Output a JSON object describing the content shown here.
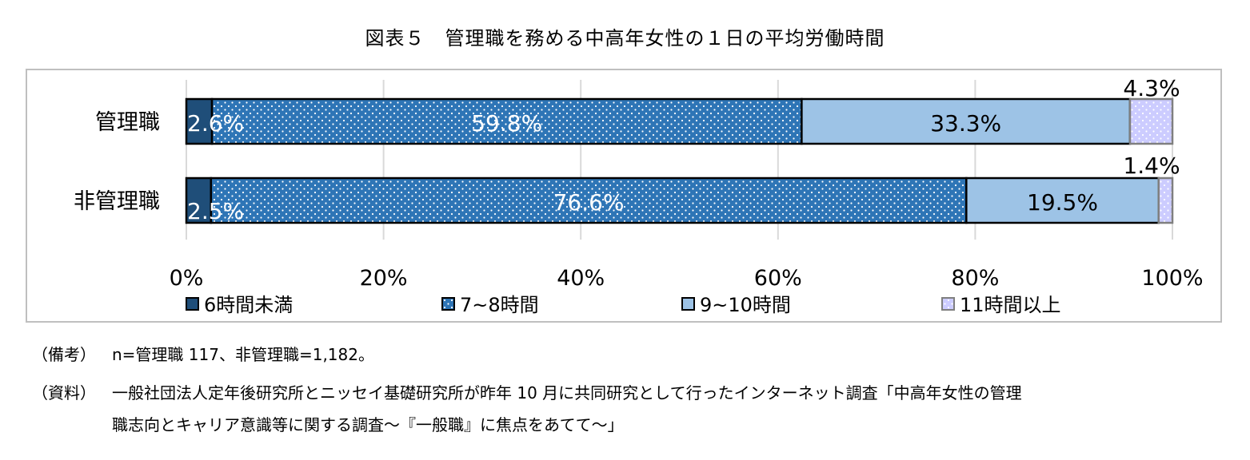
{
  "title": "図表５　管理職を務める中高年女性の１日の平均労働時間",
  "chart_data": {
    "type": "bar",
    "orientation": "horizontal",
    "stacked": "100%",
    "categories": [
      "管理職",
      "非管理職"
    ],
    "series": [
      {
        "name": "6時間未満",
        "values": [
          2.6,
          2.5
        ],
        "labels": [
          "2.6%",
          "2.5%"
        ],
        "color": "#1f4e79",
        "pattern": "solid"
      },
      {
        "name": "7~8時間",
        "values": [
          59.8,
          76.6
        ],
        "labels": [
          "59.8%",
          "76.6%"
        ],
        "color": "#2e75b6",
        "pattern": "dots"
      },
      {
        "name": "9~10時間",
        "values": [
          33.3,
          19.5
        ],
        "labels": [
          "33.3%",
          "19.5%"
        ],
        "color": "#9dc3e6",
        "pattern": "solid"
      },
      {
        "name": "11時間以上",
        "values": [
          4.3,
          1.4
        ],
        "labels": [
          "4.3%",
          "1.4%"
        ],
        "color": "#ccccff",
        "pattern": "dots"
      }
    ],
    "xlim": [
      0,
      100
    ],
    "xticks": [
      "0%",
      "20%",
      "40%",
      "60%",
      "80%",
      "100%"
    ],
    "grid": true,
    "legend_position": "bottom"
  },
  "notes": {
    "remarks_tag": "（備考）",
    "remarks_text": "n=管理職 117、非管理職=1,182。",
    "source_tag": "（資料）",
    "source_text_1": "一般社団法人定年後研究所とニッセイ基礎研究所が昨年 10 月に共同研究として行ったインターネット調査「中高年女性の管理",
    "source_text_2": "職志向とキャリア意識等に関する調査～『一般職』に焦点をあてて～」"
  }
}
